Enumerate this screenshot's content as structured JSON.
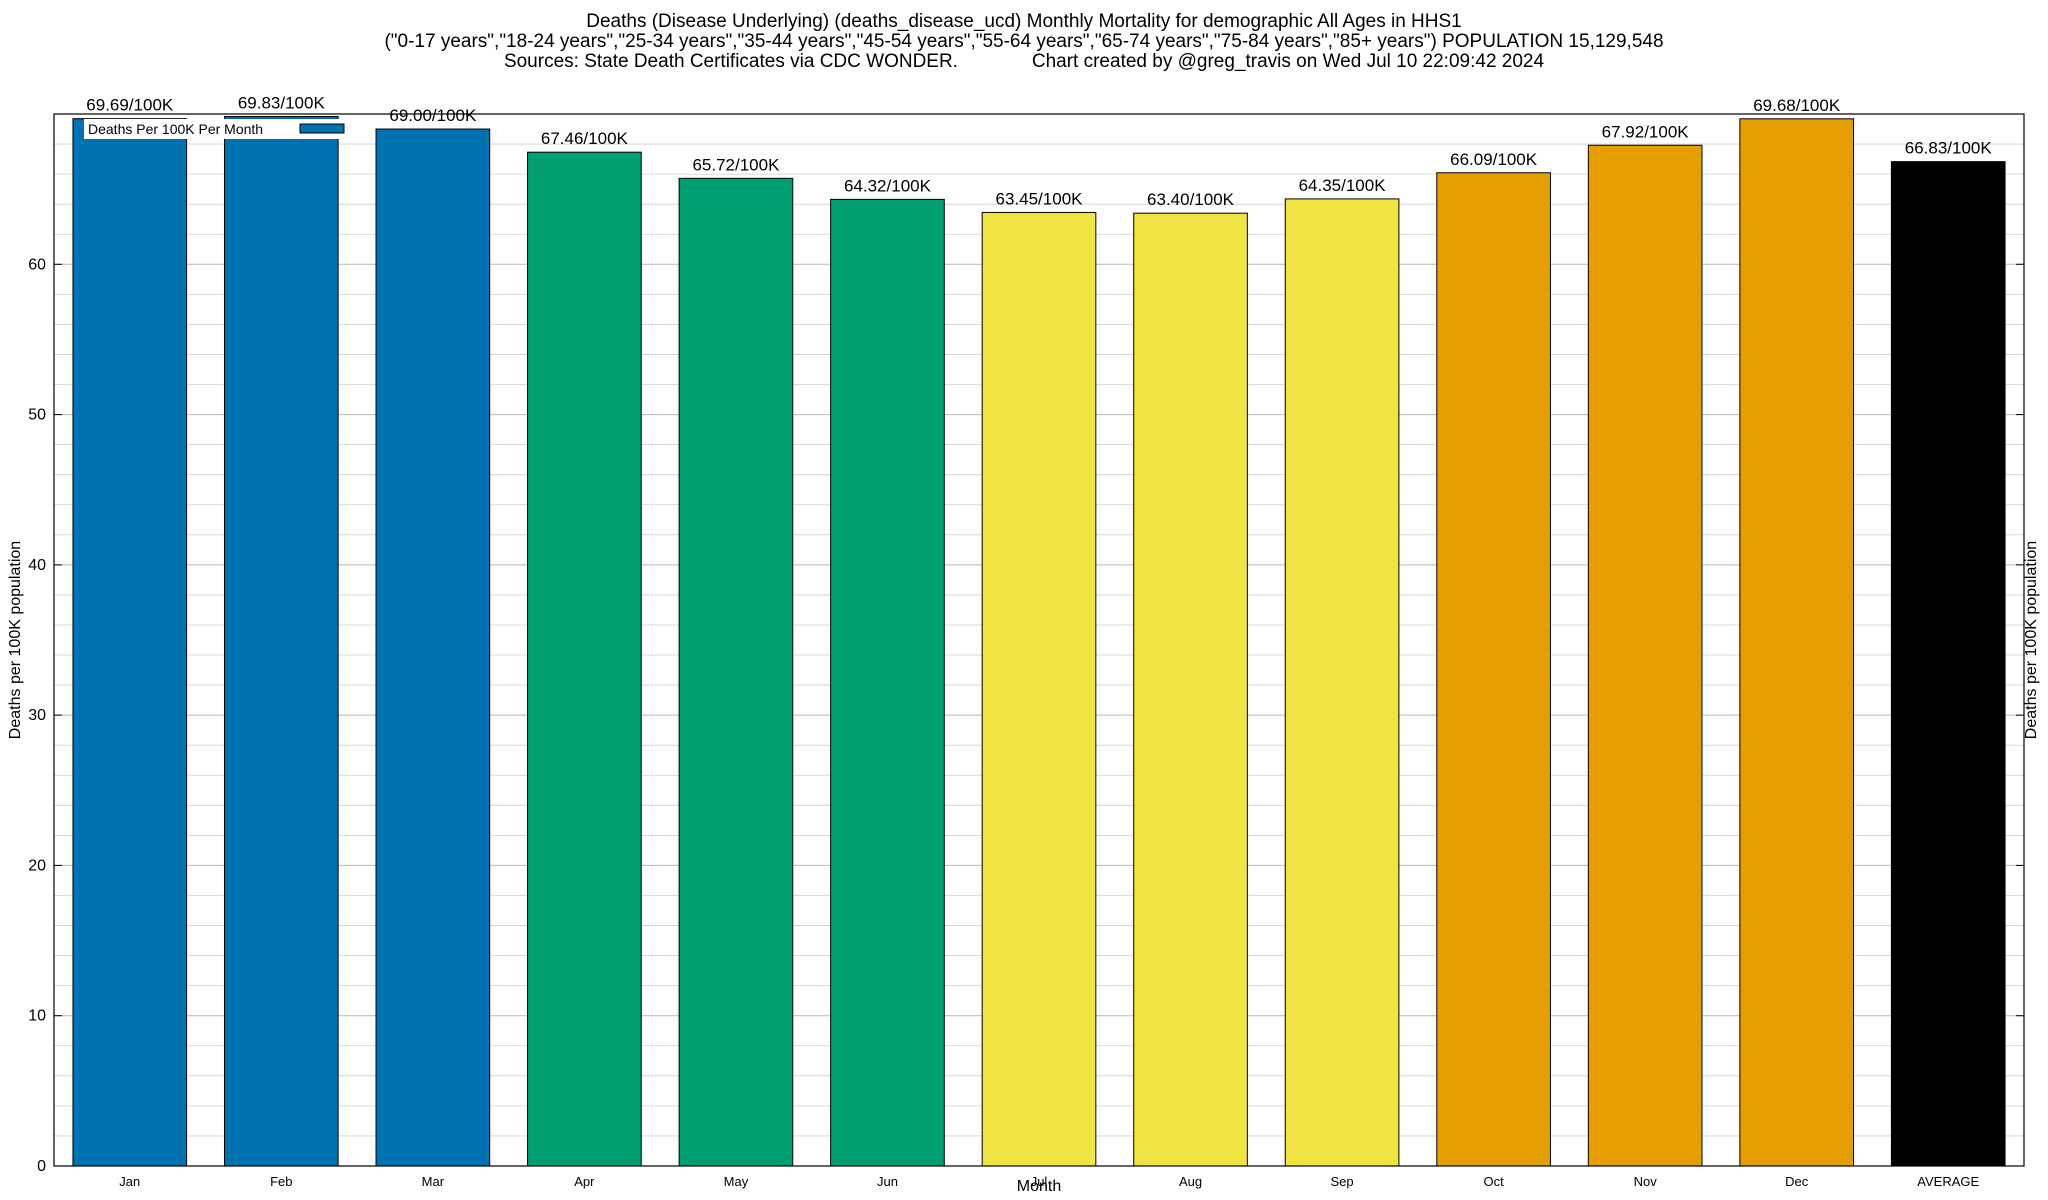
{
  "chart_data": {
    "type": "bar",
    "title_lines": [
      "Deaths (Disease Underlying) (deaths_disease_ucd) Monthly Mortality for demographic All Ages in HHS1",
      "(\"0-17 years\",\"18-24 years\",\"25-34 years\",\"35-44 years\",\"45-54 years\",\"55-64 years\",\"65-74 years\",\"75-84 years\",\"85+ years\") POPULATION 15,129,548",
      "Sources: State Death Certificates via CDC WONDER.              Chart created by @greg_travis on Wed Jul 10 22:09:42 2024"
    ],
    "xlabel": "Month",
    "ylabel": "Deaths per 100K population",
    "y2label": "Deaths per 100K population",
    "ylim": [
      0,
      70
    ],
    "yticks": [
      0,
      10,
      20,
      30,
      40,
      50,
      60
    ],
    "legend": {
      "label": "Deaths Per 100K Per Month",
      "color": "#0072B2",
      "position": "top-left"
    },
    "categories": [
      "Jan",
      "Feb",
      "Mar",
      "Apr",
      "May",
      "Jun",
      "Jul",
      "Aug",
      "Sep",
      "Oct",
      "Nov",
      "Dec",
      "AVERAGE"
    ],
    "values": [
      69.69,
      69.83,
      69.0,
      67.46,
      65.72,
      64.32,
      63.45,
      63.4,
      64.35,
      66.09,
      67.92,
      69.68,
      66.83
    ],
    "labels": [
      "69.69/100K",
      "69.83/100K",
      "69.00/100K",
      "67.46/100K",
      "65.72/100K",
      "64.32/100K",
      "63.45/100K",
      "63.40/100K",
      "64.35/100K",
      "66.09/100K",
      "67.92/100K",
      "69.68/100K",
      "66.83/100K"
    ],
    "colors": [
      "#0072B2",
      "#0072B2",
      "#0072B2",
      "#009E73",
      "#009E73",
      "#009E73",
      "#F0E442",
      "#F0E442",
      "#F0E442",
      "#E69F00",
      "#E69F00",
      "#E69F00",
      "#000000"
    ]
  }
}
